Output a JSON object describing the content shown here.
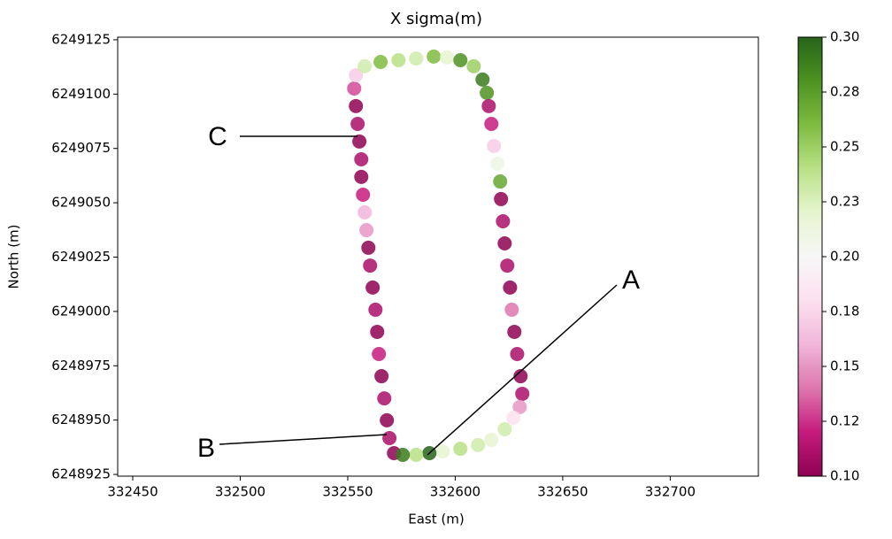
{
  "chart_data": {
    "type": "scatter",
    "title": "X sigma(m)",
    "xlabel": "East (m)",
    "ylabel": "North (m)",
    "colormap": "PiYG",
    "x": [
      332571.5,
      332569.4,
      332568.2,
      332567.0,
      332565.7,
      332564.5,
      332563.7,
      332562.9,
      332561.6,
      332560.4,
      332559.6,
      332558.7,
      332557.9,
      332557.1,
      332556.3,
      332556.3,
      332555.4,
      332554.6,
      332553.8,
      332553.0,
      332553.8,
      332557.9,
      332565.3,
      332573.6,
      332581.8,
      332590.0,
      332596.2,
      332602.4,
      332608.6,
      332612.7,
      332614.7,
      332615.6,
      332616.8,
      332618.0,
      332619.7,
      332620.9,
      332621.3,
      332622.2,
      332623.0,
      332624.2,
      332625.5,
      332626.3,
      332627.5,
      332628.8,
      332630.4,
      332631.2,
      332630.0,
      332627.1,
      332623.0,
      332616.8,
      332610.6,
      332602.4,
      332594.2,
      332588.0,
      332581.8,
      332575.6
    ],
    "y": [
      6248934.8,
      6248941.7,
      6248949.9,
      6248960.0,
      6248970.2,
      6248980.4,
      6248990.6,
      6249000.8,
      6249011.0,
      6249021.1,
      6249029.3,
      6249037.4,
      6249045.6,
      6249053.7,
      6249061.9,
      6249070.0,
      6249078.2,
      6249086.3,
      6249094.5,
      6249102.6,
      6249108.7,
      6249112.8,
      6249114.8,
      6249115.6,
      6249116.4,
      6249117.3,
      6249116.9,
      6249115.6,
      6249112.8,
      6249106.7,
      6249100.6,
      6249094.5,
      6249086.3,
      6249076.1,
      6249068.0,
      6249059.8,
      6249051.7,
      6249041.5,
      6249031.3,
      6249021.1,
      6249011.0,
      6249000.8,
      6248990.6,
      6248980.4,
      6248970.2,
      6248962.1,
      6248956.0,
      6248951.1,
      6248945.8,
      6248940.9,
      6248938.5,
      6248936.8,
      6248935.6,
      6248934.8,
      6248934.0,
      6248934.0
    ],
    "values": [
      0.1,
      0.11,
      0.1,
      0.11,
      0.1,
      0.12,
      0.1,
      0.11,
      0.1,
      0.11,
      0.1,
      0.15,
      0.16,
      0.12,
      0.1,
      0.11,
      0.1,
      0.11,
      0.1,
      0.13,
      0.17,
      0.23,
      0.26,
      0.24,
      0.23,
      0.26,
      0.22,
      0.28,
      0.25,
      0.29,
      0.28,
      0.11,
      0.12,
      0.17,
      0.21,
      0.27,
      0.1,
      0.11,
      0.1,
      0.11,
      0.1,
      0.14,
      0.1,
      0.11,
      0.1,
      0.11,
      0.15,
      0.18,
      0.23,
      0.22,
      0.23,
      0.24,
      0.22,
      0.3,
      0.24,
      0.29
    ],
    "xlim": [
      332443,
      332741
    ],
    "ylim": [
      6248924.2,
      6249126.2
    ],
    "xticks": [
      332450,
      332500,
      332550,
      332600,
      332650,
      332700
    ],
    "yticks": [
      6248925,
      6248950,
      6248975,
      6249000,
      6249025,
      6249050,
      6249075,
      6249100,
      6249125
    ],
    "clim": [
      0.1,
      0.3
    ],
    "cticks": [
      {
        "value": 0.1,
        "label": "0.10"
      },
      {
        "value": 0.125,
        "label": "0.12"
      },
      {
        "value": 0.15,
        "label": "0.15"
      },
      {
        "value": 0.175,
        "label": "0.18"
      },
      {
        "value": 0.2,
        "label": "0.20"
      },
      {
        "value": 0.225,
        "label": "0.23"
      },
      {
        "value": 0.25,
        "label": "0.25"
      },
      {
        "value": 0.275,
        "label": "0.28"
      },
      {
        "value": 0.3,
        "label": "0.30"
      }
    ],
    "annotations": [
      {
        "text": "A"
      },
      {
        "text": "B"
      },
      {
        "text": "C"
      }
    ]
  }
}
